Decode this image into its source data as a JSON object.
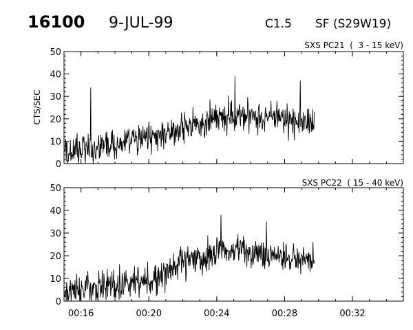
{
  "header": {
    "event_id": "16100",
    "date": "9-JUL-99",
    "class": "C1.5",
    "location": "SF (S29W19)"
  },
  "chart_data": [
    {
      "type": "line",
      "title": "SXS PC21  (  3 - 15 keV)",
      "ylabel": "CTS/SEC",
      "xlabel": "",
      "ylim": [
        0,
        50
      ],
      "yticks": [
        "0",
        "10",
        "20",
        "30",
        "40",
        "50"
      ],
      "xlim": [
        "00:15:00",
        "00:35:00"
      ],
      "xticks": [
        "00:16",
        "00:20",
        "00:24",
        "00:28",
        "00:32"
      ],
      "grid": false,
      "series": [
        {
          "x": [
            "00:15:00",
            "00:15:30",
            "00:16:00",
            "00:16:30",
            "00:17:00",
            "00:17:30",
            "00:18:00",
            "00:18:30",
            "00:19:00",
            "00:19:30",
            "00:20:00",
            "00:20:30",
            "00:21:00",
            "00:21:30",
            "00:22:00",
            "00:22:30",
            "00:23:00",
            "00:23:30",
            "00:24:00",
            "00:24:30",
            "00:25:00",
            "00:25:30",
            "00:26:00",
            "00:26:30",
            "00:27:00",
            "00:27:30",
            "00:28:00",
            "00:28:30",
            "00:29:00",
            "00:29:30",
            "00:29:45"
          ],
          "values": [
            4,
            5,
            6,
            6,
            7,
            8,
            8,
            9,
            10,
            11,
            12,
            12,
            13,
            14,
            16,
            17,
            18,
            19,
            20,
            21,
            22,
            22,
            22,
            21,
            21,
            20,
            20,
            19,
            19,
            18,
            17
          ],
          "noise": 6,
          "spikes": [
            {
              "x": "00:16:35",
              "y": 34
            },
            {
              "x": "00:25:05",
              "y": 39
            },
            {
              "x": "00:28:55",
              "y": 37
            }
          ]
        }
      ]
    },
    {
      "type": "line",
      "title": "SXS PC22  ( 15 - 40 keV)",
      "ylabel": "",
      "xlabel": "",
      "ylim": [
        0,
        50
      ],
      "yticks": [
        "0",
        "10",
        "20",
        "30",
        "40",
        "50"
      ],
      "xlim": [
        "00:15:00",
        "00:35:00"
      ],
      "xticks": [
        "00:16",
        "00:20",
        "00:24",
        "00:28",
        "00:32"
      ],
      "grid": false,
      "series": [
        {
          "x": [
            "00:15:00",
            "00:15:30",
            "00:16:00",
            "00:16:30",
            "00:17:00",
            "00:17:30",
            "00:18:00",
            "00:18:30",
            "00:19:00",
            "00:19:30",
            "00:20:00",
            "00:20:30",
            "00:21:00",
            "00:21:30",
            "00:22:00",
            "00:22:30",
            "00:23:00",
            "00:23:30",
            "00:24:00",
            "00:24:30",
            "00:25:00",
            "00:25:30",
            "00:26:00",
            "00:26:30",
            "00:27:00",
            "00:27:30",
            "00:28:00",
            "00:28:30",
            "00:29:00",
            "00:29:30",
            "00:29:45"
          ],
          "values": [
            4,
            5,
            5,
            6,
            6,
            7,
            7,
            8,
            8,
            9,
            9,
            11,
            13,
            15,
            17,
            18,
            19,
            20,
            21,
            22,
            21,
            22,
            22,
            21,
            21,
            20,
            20,
            19,
            19,
            18,
            17
          ],
          "noise": 6,
          "spikes": [
            {
              "x": "00:24:15",
              "y": 38
            },
            {
              "x": "00:26:55",
              "y": 35
            },
            {
              "x": "00:29:40",
              "y": 26
            }
          ]
        }
      ]
    }
  ]
}
